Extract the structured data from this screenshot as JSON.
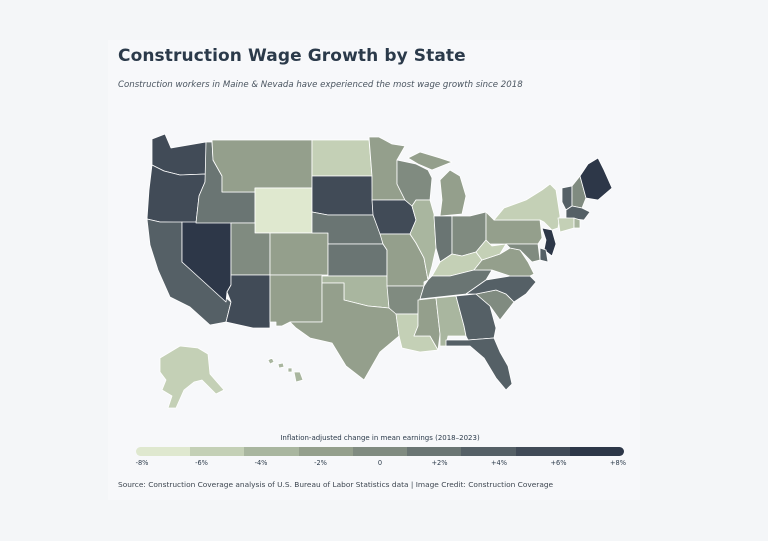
{
  "header": {
    "title": "Construction Wage Growth by State",
    "subtitle": "Construction workers in Maine & Nevada have experienced the most wage growth since 2018"
  },
  "legend": {
    "title": "Inflation-adjusted change in mean earnings (2018–2023)",
    "ticks": [
      "-8%",
      "-6%",
      "-4%",
      "-2%",
      "0",
      "+2%",
      "+4%",
      "+6%",
      "+8%"
    ],
    "colors": [
      "#dfe8cf",
      "#c4d0b6",
      "#a9b69f",
      "#949f8c",
      "#808b80",
      "#6a7573",
      "#556066",
      "#414b57",
      "#2d3748"
    ]
  },
  "source": "Source: Construction Coverage analysis of U.S. Bureau of Labor Statistics data | Image Credit: Construction Coverage",
  "states": [
    {
      "id": "WA",
      "value": 6.0
    },
    {
      "id": "OR",
      "value": 5.0
    },
    {
      "id": "CA",
      "value": 4.5
    },
    {
      "id": "NV",
      "value": 8.0
    },
    {
      "id": "ID",
      "value": 2.0
    },
    {
      "id": "MT",
      "value": -2.0
    },
    {
      "id": "WY",
      "value": -8.0
    },
    {
      "id": "UT",
      "value": 0.5
    },
    {
      "id": "AZ",
      "value": 5.0
    },
    {
      "id": "CO",
      "value": -2.0
    },
    {
      "id": "NM",
      "value": -3.0
    },
    {
      "id": "ND",
      "value": -6.0
    },
    {
      "id": "SD",
      "value": 6.0
    },
    {
      "id": "NE",
      "value": 2.5
    },
    {
      "id": "KS",
      "value": 2.5
    },
    {
      "id": "OK",
      "value": -4.0
    },
    {
      "id": "TX",
      "value": -3.0
    },
    {
      "id": "MN",
      "value": -3.0
    },
    {
      "id": "IA",
      "value": 5.5
    },
    {
      "id": "MO",
      "value": -3.0
    },
    {
      "id": "AR",
      "value": 0.5
    },
    {
      "id": "LA",
      "value": -7.0
    },
    {
      "id": "WI",
      "value": -1.0
    },
    {
      "id": "IL",
      "value": -4.0
    },
    {
      "id": "MI",
      "value": -3.0
    },
    {
      "id": "IN",
      "value": 2.0
    },
    {
      "id": "OH",
      "value": 0.0
    },
    {
      "id": "KY",
      "value": -6.0
    },
    {
      "id": "TN",
      "value": 2.0
    },
    {
      "id": "MS",
      "value": -3.0
    },
    {
      "id": "AL",
      "value": -5.0
    },
    {
      "id": "GA",
      "value": 3.0
    },
    {
      "id": "FL",
      "value": 4.0
    },
    {
      "id": "SC",
      "value": 0.5
    },
    {
      "id": "NC",
      "value": 4.5
    },
    {
      "id": "VA",
      "value": -2.0
    },
    {
      "id": "WV",
      "value": -6.0
    },
    {
      "id": "PA",
      "value": -2.0
    },
    {
      "id": "NY",
      "value": -7.0
    },
    {
      "id": "VT",
      "value": 3.0
    },
    {
      "id": "NH",
      "value": 0.5
    },
    {
      "id": "ME",
      "value": 8.0
    },
    {
      "id": "MA",
      "value": 3.5
    },
    {
      "id": "CT",
      "value": -7.0
    },
    {
      "id": "RI",
      "value": -4.0
    },
    {
      "id": "NJ",
      "value": 7.0
    },
    {
      "id": "DE",
      "value": 3.0
    },
    {
      "id": "MD",
      "value": 0.0
    },
    {
      "id": "AK",
      "value": -7.0
    },
    {
      "id": "HI",
      "value": -5.0
    }
  ]
}
